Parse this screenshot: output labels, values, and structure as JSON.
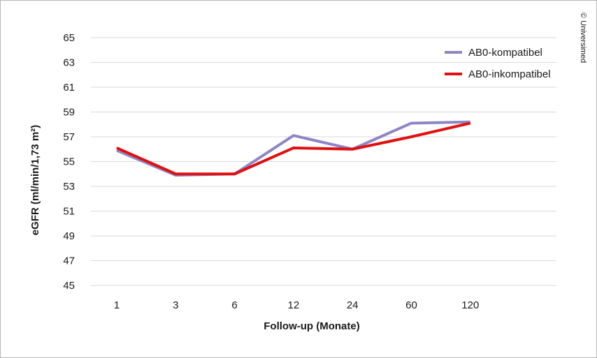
{
  "chart_data": {
    "type": "line",
    "categories": [
      "1",
      "3",
      "6",
      "12",
      "24",
      "60",
      "120"
    ],
    "series": [
      {
        "name": "AB0-kompatibel",
        "color": "#8e86c4",
        "values": [
          55.9,
          53.9,
          54.0,
          57.1,
          56.0,
          58.1,
          58.2
        ]
      },
      {
        "name": "AB0-inkompatibel",
        "color": "#e01010",
        "values": [
          56.1,
          54.0,
          54.0,
          56.1,
          56.0,
          57.0,
          58.1
        ]
      }
    ],
    "yticks": [
      45,
      47,
      49,
      51,
      53,
      55,
      57,
      59,
      61,
      63,
      65
    ],
    "ylim": [
      45,
      65
    ],
    "xlabel": "Follow-up (Monate)",
    "ylabel": "eGFR (ml/min/1,73 m²)",
    "grid": true,
    "legend_position": "top-right"
  },
  "credit": "© Universimed"
}
